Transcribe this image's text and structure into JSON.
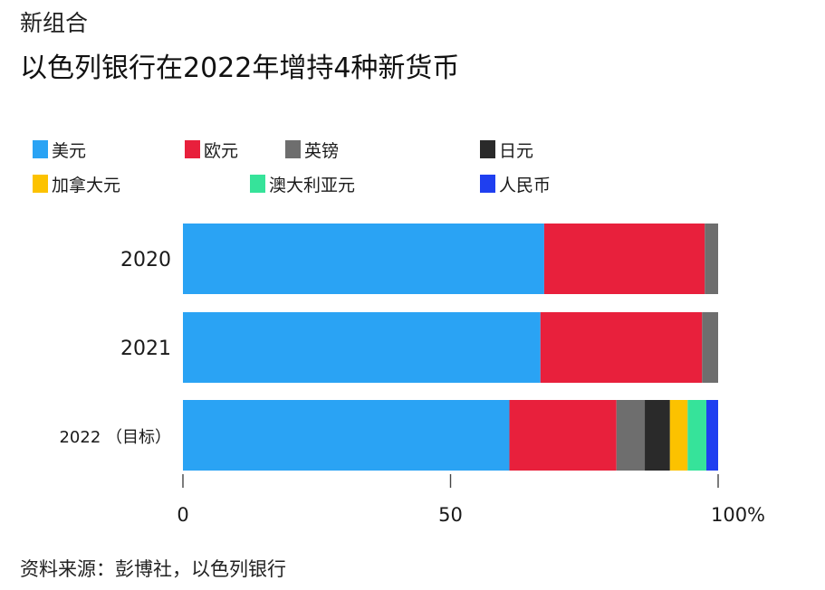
{
  "header": {
    "kicker": "新组合",
    "title": "以色列银行在2022年增持4种新货币"
  },
  "legend": [
    {
      "label": "美元",
      "color": "#2aa3f4",
      "icon": "legend-swatch-square"
    },
    {
      "label": "欧元",
      "color": "#e8203c",
      "icon": "legend-swatch-square"
    },
    {
      "label": "英镑",
      "color": "#6e6e6e",
      "icon": "legend-swatch-square"
    },
    {
      "label": "日元",
      "color": "#2a2a2a",
      "icon": "legend-swatch-square"
    },
    {
      "label": "加拿大元",
      "color": "#fcc200",
      "icon": "legend-swatch-square"
    },
    {
      "label": "澳大利亚元",
      "color": "#36e39a",
      "icon": "legend-swatch-square"
    },
    {
      "label": "人民币",
      "color": "#1f3ff0",
      "icon": "legend-swatch-square"
    }
  ],
  "chart_data": {
    "type": "bar",
    "orientation": "horizontal",
    "stacked": true,
    "title": "以色列银行在2022年增持4种新货币",
    "xlabel": "",
    "ylabel": "",
    "xlim": [
      0,
      100
    ],
    "x_ticks": [
      "0",
      "50",
      "100%"
    ],
    "x_tick_values": [
      0,
      50,
      100
    ],
    "grid": false,
    "legend_position": "top",
    "categories": [
      "2020",
      "2021",
      "2022 （目标）"
    ],
    "series": [
      {
        "name": "美元",
        "color": "#2aa3f4",
        "values": [
          67.5,
          66.8,
          61.0
        ]
      },
      {
        "name": "欧元",
        "color": "#e8203c",
        "values": [
          30.0,
          30.2,
          20.0
        ]
      },
      {
        "name": "英镑",
        "color": "#6e6e6e",
        "values": [
          2.5,
          3.0,
          5.3
        ]
      },
      {
        "name": "日元",
        "color": "#2a2a2a",
        "values": [
          0,
          0,
          4.7
        ]
      },
      {
        "name": "加拿大元",
        "color": "#fcc200",
        "values": [
          0,
          0,
          3.3
        ]
      },
      {
        "name": "澳大利亚元",
        "color": "#36e39a",
        "values": [
          0,
          0,
          3.5
        ]
      },
      {
        "name": "人民币",
        "color": "#1f3ff0",
        "values": [
          0,
          0,
          2.2
        ]
      }
    ]
  },
  "footer": {
    "source": "资料来源：彭博社，以色列银行"
  }
}
